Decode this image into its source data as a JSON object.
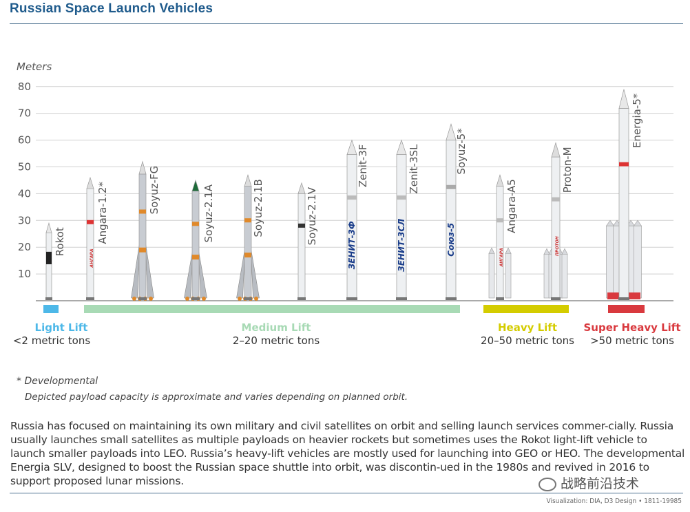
{
  "header": {
    "title": "Russian Space Launch Vehicles"
  },
  "chart_data": {
    "type": "bar",
    "ylabel": "Meters",
    "ylim": [
      0,
      80
    ],
    "yticks": [
      "10",
      "20",
      "30",
      "40",
      "50",
      "60",
      "70",
      "80"
    ],
    "categories": [
      "Rokot",
      "Angara-1.2*",
      "Soyuz-FG",
      "Soyuz-2.1A",
      "Soyuz-2.1B",
      "Soyuz-2.1V",
      "Zenit-3F",
      "Zenit-3SL",
      "Soyuz-5*",
      "Angara-A5",
      "Proton-M",
      "Energia-5*"
    ],
    "values": [
      29,
      46,
      52,
      45,
      47,
      44,
      60,
      60,
      66,
      47,
      59,
      79
    ],
    "body_labels": {
      "Zenit-3F": "ЗЕНИТ-3Ф",
      "Zenit-3SL": "ЗЕНИТ-3СЛ",
      "Soyuz-5*": "Союз-5",
      "Angara-1.2*": "АНГАРА",
      "Angara-A5": "АНГАРА",
      "Proton-M": "ПРОТОН"
    },
    "lift_classes": [
      {
        "name": "Light Lift",
        "range": "<2 metric tons",
        "color": "#4db8e8"
      },
      {
        "name": "Medium Lift",
        "range": "2–20 metric tons",
        "color": "#a8dab5"
      },
      {
        "name": "Heavy Lift",
        "range": "20–50 metric tons",
        "color": "#d4cc00"
      },
      {
        "name": "Super Heavy Lift",
        "range": ">50 metric tons",
        "color": "#d9393e"
      }
    ]
  },
  "notes": {
    "developmental": "* Developmental",
    "payload": "Depicted payload capacity is approximate and varies depending on planned orbit."
  },
  "body_text": "Russia has focused on maintaining its own military and civil satellites on orbit and selling launch services commer-cially. Russia usually launches small satellites as multiple payloads on heavier rockets but sometimes uses the Rokot light-lift vehicle to launch smaller payloads into LEO. Russia’s heavy-lift vehicles are mostly used for launching into GEO or HEO. The developmental Energia SLV, designed to boost the Russian space shuttle into orbit, was discontin-ued in the 1980s and revived in 2016 to support proposed lunar missions.",
  "credit": "Visualization: DIA, D3 Design • 1811-19985",
  "watermark": "战略前沿技术"
}
